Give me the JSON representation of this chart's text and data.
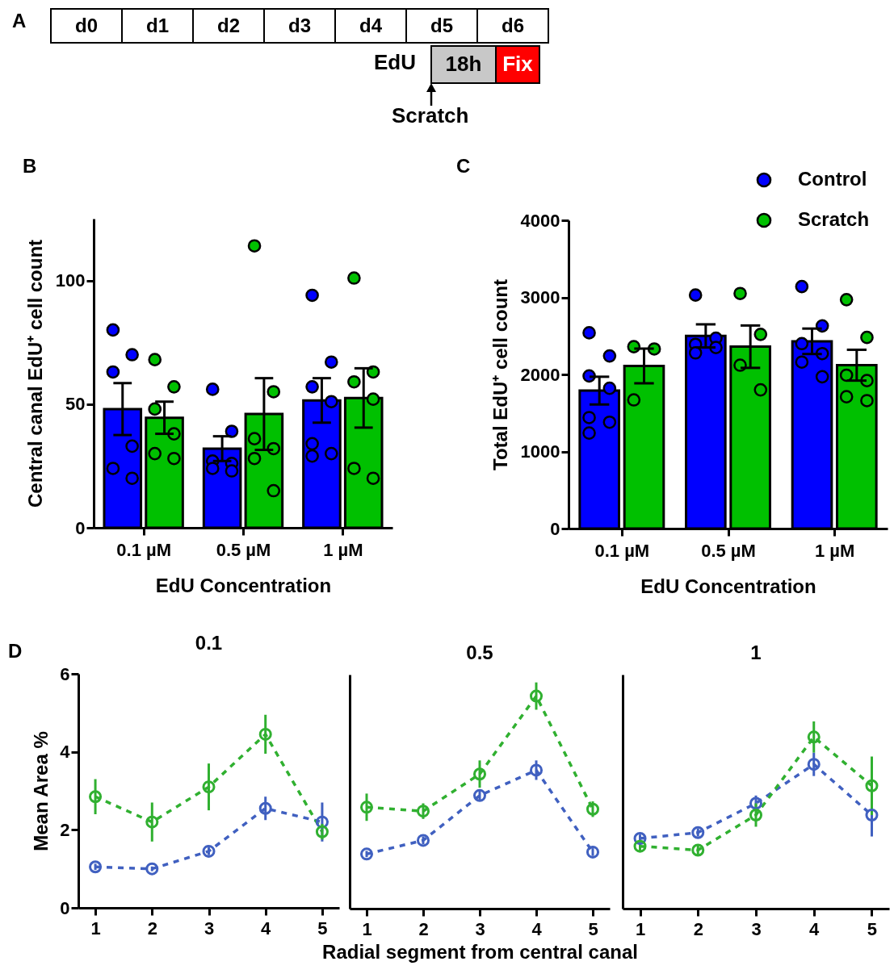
{
  "chart_data": [
    {
      "type": "other",
      "title": "A",
      "categories": [
        "d0",
        "d1",
        "d2",
        "d3",
        "d4",
        "d5",
        "d6"
      ],
      "annotations": [
        "EdU",
        "18h",
        "Fix",
        "Scratch"
      ]
    },
    {
      "type": "bar",
      "annotations": [
        "B"
      ],
      "categories": [
        "0.1 µM",
        "0.5 µM",
        "1 µM"
      ],
      "xlabel": "EdU  Concentration",
      "ylabel": "Central canal EdU⁺ cell count",
      "ylim": [
        0,
        125
      ],
      "yticks": [
        0,
        50,
        100
      ],
      "marker": "circle",
      "series": [
        {
          "color": "#0000ff",
          "values": [
            48,
            32,
            51.5
          ],
          "errors": [
            10.5,
            5,
            9
          ]
        },
        {
          "color": "#00c000",
          "values": [
            44.5,
            46,
            52.5
          ],
          "errors": [
            6.5,
            14.5,
            12
          ]
        },
        {
          "type": "scatter",
          "color": "#0000ff",
          "x": [
            "0.1 µM",
            "0.1 µM",
            "0.1 µM",
            "0.1 µM",
            "0.1 µM",
            "0.1 µM",
            "0.5 µM",
            "0.5 µM",
            "0.5 µM",
            "0.5 µM",
            "0.5 µM",
            "0.5 µM",
            "1 µM",
            "1 µM",
            "1 µM",
            "1 µM",
            "1 µM",
            "1 µM",
            "1 µM"
          ],
          "values": [
            80,
            70,
            63,
            33,
            24,
            20,
            56,
            39,
            27,
            26,
            24,
            23,
            94,
            67,
            57,
            51,
            34,
            30,
            29
          ]
        },
        {
          "type": "scatter",
          "color": "#00c000",
          "x": [
            "0.1 µM",
            "0.1 µM",
            "0.1 µM",
            "0.1 µM",
            "0.1 µM",
            "0.1 µM",
            "0.5 µM",
            "0.5 µM",
            "0.5 µM",
            "0.5 µM",
            "0.5 µM",
            "0.5 µM",
            "1 µM",
            "1 µM",
            "1 µM",
            "1 µM",
            "1 µM",
            "1 µM"
          ],
          "values": [
            68,
            57,
            48,
            38,
            30,
            28,
            114,
            55,
            36,
            32,
            28,
            15,
            101,
            63,
            59,
            52,
            24,
            20
          ]
        }
      ]
    },
    {
      "type": "bar",
      "annotations": [
        "C"
      ],
      "categories": [
        "0.1 µM",
        "0.5 µM",
        "1 µM"
      ],
      "xlabel": "EdU  Concentration",
      "ylabel": "Total  EdU⁺ cell count",
      "ylim": [
        0,
        4000
      ],
      "yticks": [
        0,
        1000,
        2000,
        3000,
        4000
      ],
      "marker": "circle",
      "legend": "top right",
      "series": [
        {
          "color": "#0000ff",
          "values": [
            1790,
            2500,
            2430
          ],
          "errors": [
            180,
            150,
            165
          ]
        },
        {
          "color": "#00c000",
          "values": [
            2110,
            2360,
            2120
          ],
          "errors": [
            225,
            275,
            200
          ]
        },
        {
          "type": "scatter",
          "name": "Control",
          "color": "#0000ff",
          "x": [
            "0.1 µM",
            "0.1 µM",
            "0.1 µM",
            "0.1 µM",
            "0.1 µM",
            "0.1 µM",
            "0.1 µM",
            "0.5 µM",
            "0.5 µM",
            "0.5 µM",
            "0.5 µM",
            "0.5 µM",
            "1 µM",
            "1 µM",
            "1 µM",
            "1 µM",
            "1 µM",
            "1 µM"
          ],
          "values": [
            2540,
            2240,
            1980,
            1820,
            1440,
            1380,
            1240,
            3030,
            2470,
            2390,
            2350,
            2280,
            3140,
            2630,
            2400,
            2270,
            2160,
            1970
          ]
        },
        {
          "type": "scatter",
          "name": "Scratch",
          "color": "#00c000",
          "x": [
            "0.1 µM",
            "0.1 µM",
            "0.1 µM",
            "0.5 µM",
            "0.5 µM",
            "0.5 µM",
            "0.5 µM",
            "1 µM",
            "1 µM",
            "1 µM",
            "1 µM",
            "1 µM",
            "1 µM"
          ],
          "values": [
            2360,
            2330,
            1670,
            3050,
            2520,
            2120,
            1800,
            2970,
            2480,
            1990,
            1920,
            1710,
            1660
          ]
        }
      ]
    },
    {
      "type": "line",
      "title": "0.1",
      "annotations": [
        "D"
      ],
      "ylabel": "Mean Area %",
      "x": [
        1,
        2,
        3,
        4,
        5
      ],
      "xlim": [
        0.7,
        5.3
      ],
      "xticks": [
        1,
        2,
        3,
        4,
        5
      ],
      "ylim": [
        0,
        6
      ],
      "yticks": [
        0,
        2,
        4,
        6
      ],
      "marker": "circle",
      "line_style": "dashed",
      "series": [
        {
          "color": "#4060c0",
          "values": [
            1.05,
            1.0,
            1.45,
            2.55,
            2.2
          ],
          "errors": [
            0.08,
            0.06,
            0.1,
            0.3,
            0.5
          ]
        },
        {
          "color": "#30b030",
          "values": [
            2.85,
            2.2,
            3.1,
            4.45,
            1.95
          ],
          "errors": [
            0.45,
            0.5,
            0.6,
            0.5,
            0.2
          ]
        }
      ]
    },
    {
      "type": "line",
      "title": "0.5",
      "xlabel": "Radial segment from central canal",
      "tick_labels": "x",
      "x": [
        1,
        2,
        3,
        4,
        5
      ],
      "xlim": [
        0.7,
        5.3
      ],
      "xticks": [
        1,
        2,
        3,
        4,
        5
      ],
      "ylim": [
        0,
        6
      ],
      "marker": "circle",
      "line_style": "dashed",
      "series": [
        {
          "color": "#4060c0",
          "values": [
            1.4,
            1.75,
            2.9,
            3.55,
            1.45
          ],
          "errors": [
            0.08,
            0.1,
            0.12,
            0.25,
            0.1
          ]
        },
        {
          "color": "#30b030",
          "values": [
            2.6,
            2.5,
            3.45,
            5.45,
            2.55
          ],
          "errors": [
            0.35,
            0.2,
            0.35,
            0.35,
            0.2
          ]
        }
      ]
    },
    {
      "type": "line",
      "title": "1",
      "tick_labels": "x",
      "x": [
        1,
        2,
        3,
        4,
        5
      ],
      "xlim": [
        0.7,
        5.3
      ],
      "xticks": [
        1,
        2,
        3,
        4,
        5
      ],
      "ylim": [
        0,
        6
      ],
      "marker": "circle",
      "line_style": "dashed",
      "series": [
        {
          "color": "#4060c0",
          "values": [
            1.8,
            1.95,
            2.7,
            3.7,
            2.4
          ],
          "errors": [
            0.1,
            0.1,
            0.2,
            0.3,
            0.55
          ]
        },
        {
          "color": "#30b030",
          "values": [
            1.6,
            1.5,
            2.4,
            4.4,
            3.15
          ],
          "errors": [
            0.15,
            0.15,
            0.3,
            0.4,
            0.75
          ]
        }
      ]
    }
  ]
}
